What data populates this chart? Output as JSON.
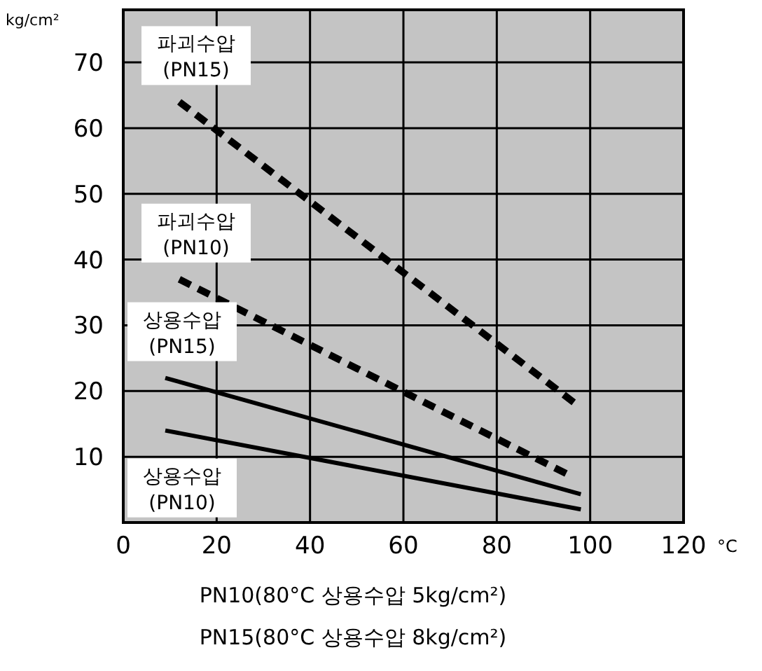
{
  "chart_data": {
    "type": "line",
    "ylabel": "kg/cm²",
    "xlabel": "°C",
    "xlim": [
      0,
      120
    ],
    "xticks": [
      0,
      20,
      40,
      60,
      80,
      100,
      120
    ],
    "ylim": [
      0,
      78
    ],
    "yticks": [
      10,
      20,
      30,
      40,
      50,
      60,
      70
    ],
    "grid": true,
    "line_style": "solid",
    "marker": "none",
    "series": [
      {
        "name": "파괴수압 (PN15)",
        "color": "#000000",
        "line_style": "dashed",
        "x": [
          12,
          97
        ],
        "values": [
          64,
          18
        ]
      },
      {
        "name": "파괴수압 (PN10)",
        "color": "#000000",
        "line_style": "dashed",
        "x": [
          12,
          95
        ],
        "values": [
          37,
          7.4
        ]
      },
      {
        "name": "상용수압 (PN15)",
        "color": "#000000",
        "x": [
          9,
          98
        ],
        "values": [
          22,
          4.3
        ]
      },
      {
        "name": "상용수압 (PN10)",
        "color": "#000000",
        "x": [
          9,
          98
        ],
        "values": [
          14,
          2
        ]
      }
    ],
    "annotations": [
      "PN10(80°C 상용수압 5kg/cm²)",
      "PN15(80°C 상용수압 8kg/cm²)"
    ]
  }
}
